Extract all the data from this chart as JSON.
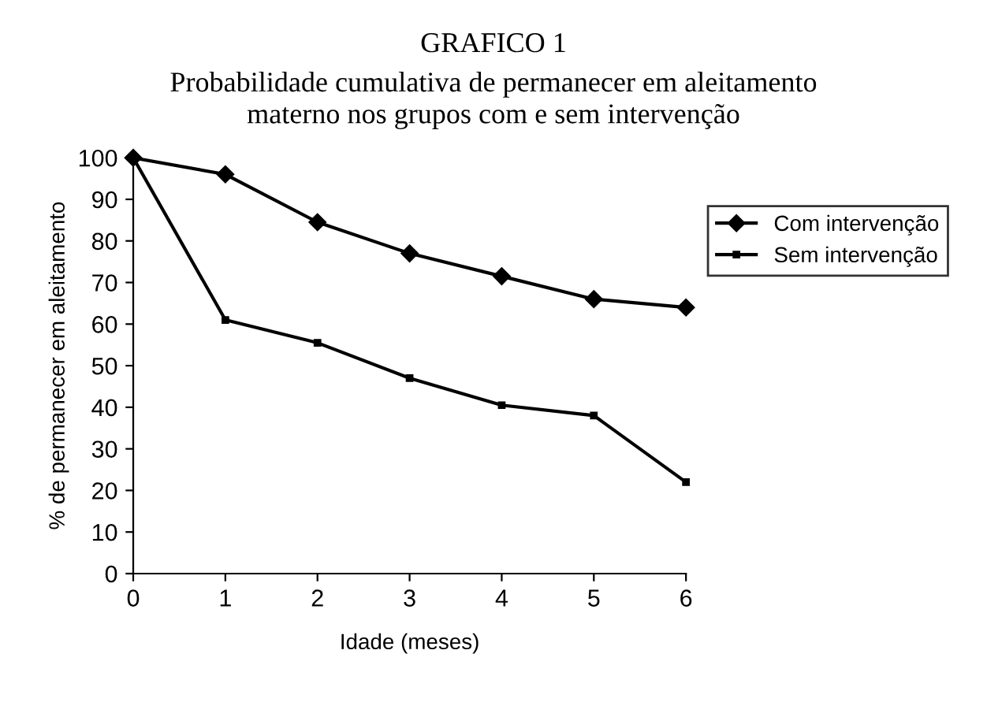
{
  "chart_data": {
    "type": "line",
    "title": "GRAFICO 1",
    "subtitle": "Probabilidade cumulativa de permanecer em aleitamento\nmaterno nos grupos com e sem intervenção",
    "xlabel": "Idade (meses)",
    "ylabel": "% de permanecer em aleitamento",
    "x": [
      0,
      1,
      2,
      3,
      4,
      5,
      6
    ],
    "series": [
      {
        "name": "Com intervenção",
        "color": "#000000",
        "marker": "diamond",
        "values": [
          100,
          96,
          84.5,
          77,
          71.5,
          66,
          64
        ]
      },
      {
        "name": "Sem intervenção",
        "color": "#000000",
        "marker": "square",
        "values": [
          100,
          61,
          55.5,
          47,
          40.5,
          38,
          22
        ]
      }
    ],
    "xlim": [
      0,
      6
    ],
    "xticks": [
      0,
      1,
      2,
      3,
      4,
      5,
      6
    ],
    "ylim": [
      0,
      100
    ],
    "yticks": [
      0,
      10,
      20,
      30,
      40,
      50,
      60,
      70,
      80,
      90,
      100
    ],
    "grid": false,
    "legend": "right",
    "line_style": "solid"
  }
}
